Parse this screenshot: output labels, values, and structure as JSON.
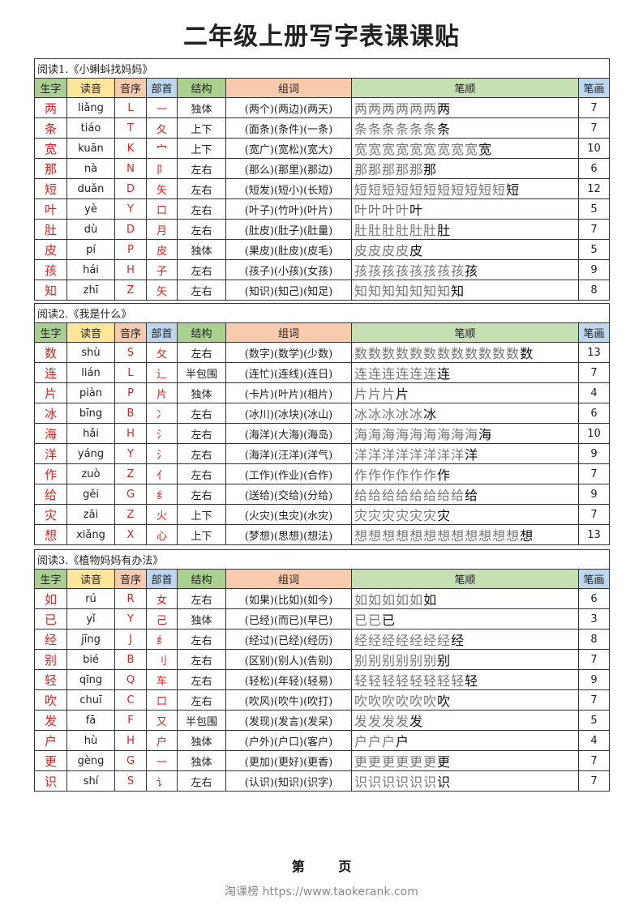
{
  "title": "二年级上册写字表课课贴",
  "headers": [
    "生字",
    "读音",
    "音序",
    "部首",
    "结构",
    "组词",
    "笔顺",
    "笔画"
  ],
  "sections": [
    {
      "caption": "阅读1.《小蝌蚪找妈妈》",
      "rows": [
        [
          "两",
          "liǎng",
          "L",
          "一",
          "独体",
          "(两个)(两边)(两天)",
          "7"
        ],
        [
          "条",
          "tiáo",
          "T",
          "夂",
          "上下",
          "(面条)(条件)(一条)",
          "7"
        ],
        [
          "宽",
          "kuān",
          "K",
          "宀",
          "上下",
          "(宽广)(宽松)(宽大)",
          "10"
        ],
        [
          "那",
          "nà",
          "N",
          "阝",
          "左右",
          "(那么)(那里)(那边)",
          "6"
        ],
        [
          "短",
          "duǎn",
          "D",
          "矢",
          "左右",
          "(短发)(短小)(长短)",
          "12"
        ],
        [
          "叶",
          "yè",
          "Y",
          "口",
          "左右",
          "(叶子)(竹叶)(叶片)",
          "5"
        ],
        [
          "肚",
          "dù",
          "D",
          "月",
          "左右",
          "(肚皮)(肚子)(肚量)",
          "7"
        ],
        [
          "皮",
          "pí",
          "P",
          "皮",
          "独体",
          "(果皮)(肚皮)(皮毛)",
          "5"
        ],
        [
          "孩",
          "hái",
          "H",
          "子",
          "左右",
          "(孩子)(小孩)(女孩)",
          "9"
        ],
        [
          "知",
          "zhī",
          "Z",
          "矢",
          "左右",
          "(知识)(知己)(知足)",
          "8"
        ]
      ]
    },
    {
      "caption": "阅读2.《我是什么》",
      "rows": [
        [
          "数",
          "shù",
          "S",
          "攵",
          "左右",
          "(数字)(数学)(少数)",
          "13"
        ],
        [
          "连",
          "lián",
          "L",
          "辶",
          "半包围",
          "(连忙)(连线)(连日)",
          "7"
        ],
        [
          "片",
          "piàn",
          "P",
          "片",
          "独体",
          "(卡片)(叶片)(相片)",
          "4"
        ],
        [
          "冰",
          "bīng",
          "B",
          "冫",
          "左右",
          "(冰川)(冰块)(冰山)",
          "6"
        ],
        [
          "海",
          "hǎi",
          "H",
          "氵",
          "左右",
          "(海洋)(大海)(海岛)",
          "10"
        ],
        [
          "洋",
          "yáng",
          "Y",
          "氵",
          "左右",
          "(海洋)(汪洋)(洋气)",
          "9"
        ],
        [
          "作",
          "zuò",
          "Z",
          "亻",
          "左右",
          "(工作)(作业)(合作)",
          "7"
        ],
        [
          "给",
          "gěi",
          "G",
          "纟",
          "左右",
          "(送给)(交给)(分给)",
          "9"
        ],
        [
          "灾",
          "zāi",
          "Z",
          "火",
          "上下",
          "(火灾)(虫灾)(水灾)",
          "7"
        ],
        [
          "想",
          "xiǎng",
          "X",
          "心",
          "上下",
          "(梦想)(思想)(想法)",
          "13"
        ]
      ]
    },
    {
      "caption": "阅读3.《植物妈妈有办法》",
      "rows": [
        [
          "如",
          "rú",
          "R",
          "女",
          "左右",
          "(如果)(比如)(如今)",
          "6"
        ],
        [
          "已",
          "yǐ",
          "Y",
          "己",
          "独体",
          "(已经)(而已)(早已)",
          "3"
        ],
        [
          "经",
          "jīng",
          "J",
          "纟",
          "左右",
          "(经过)(已经)(经历)",
          "8"
        ],
        [
          "别",
          "bié",
          "B",
          "刂",
          "左右",
          "(区别)(别人)(告别)",
          "7"
        ],
        [
          "轻",
          "qīng",
          "Q",
          "车",
          "左右",
          "(轻松)(年轻)(轻易)",
          "9"
        ],
        [
          "吹",
          "chuī",
          "C",
          "口",
          "左右",
          "(吹风)(吹牛)(吹打)",
          "7"
        ],
        [
          "发",
          "fā",
          "F",
          "又",
          "半包围",
          "(发现)(发言)(发呆)",
          "5"
        ],
        [
          "户",
          "hù",
          "H",
          "户",
          "独体",
          "(户外)(户口)(客户)",
          "4"
        ],
        [
          "更",
          "gèng",
          "G",
          "一",
          "独体",
          "(更加)(更好)(更香)",
          "7"
        ],
        [
          "识",
          "shí",
          "S",
          "讠",
          "左右",
          "(认识)(知识)(识字)",
          "7"
        ]
      ]
    }
  ],
  "footer": {
    "watermark": "淘课榜 https://www.taokerank.com",
    "page_prefix": "第",
    "page_suffix": "页"
  },
  "colors": {
    "red": "#e0201e",
    "green": "#a9d08e",
    "yellow": "#ffe699",
    "orange": "#f8cbad",
    "blue": "#bdd7ee"
  }
}
